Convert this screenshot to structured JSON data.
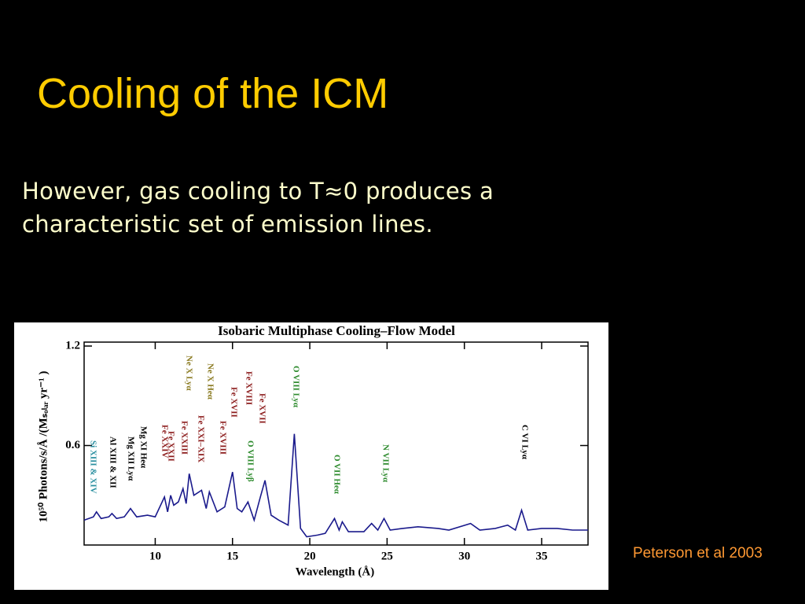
{
  "slide": {
    "title": "Cooling of the ICM",
    "body": [
      "However, gas cooling to T≈0 produces a",
      "characteristic set of emission lines."
    ],
    "citation": "Peterson et al 2003"
  },
  "chart_data": {
    "type": "line",
    "title": "Isobaric Multiphase Cooling–Flow Model",
    "x_label": "Wavelength (Å)",
    "y_label": "10⁵⁰ Photons/s/Å /(Mₛₒₗₐᵣ yr⁻¹ )",
    "x": [
      5.4,
      6.0,
      6.2,
      6.5,
      7.0,
      7.2,
      7.5,
      8.0,
      8.4,
      8.8,
      9.5,
      10.0,
      10.6,
      10.8,
      11.0,
      11.2,
      11.5,
      11.8,
      12.0,
      12.2,
      12.5,
      13.0,
      13.3,
      13.5,
      14.0,
      14.5,
      15.0,
      15.3,
      15.6,
      16.0,
      16.4,
      16.8,
      17.1,
      17.5,
      18.0,
      18.6,
      19.0,
      19.4,
      19.8,
      20.5,
      21.0,
      21.6,
      21.9,
      22.1,
      22.5,
      23.5,
      24.0,
      24.4,
      24.8,
      25.2,
      26,
      27,
      28.3,
      29,
      30.4,
      31,
      32,
      32.8,
      33.3,
      33.7,
      34.1,
      35,
      36,
      37,
      38
    ],
    "values": [
      0.15,
      0.17,
      0.2,
      0.16,
      0.17,
      0.19,
      0.16,
      0.17,
      0.22,
      0.17,
      0.18,
      0.17,
      0.29,
      0.2,
      0.3,
      0.24,
      0.26,
      0.34,
      0.25,
      0.43,
      0.3,
      0.33,
      0.22,
      0.32,
      0.2,
      0.23,
      0.44,
      0.22,
      0.2,
      0.26,
      0.15,
      0.29,
      0.39,
      0.18,
      0.15,
      0.12,
      0.67,
      0.1,
      0.05,
      0.06,
      0.07,
      0.16,
      0.09,
      0.14,
      0.08,
      0.08,
      0.13,
      0.09,
      0.16,
      0.09,
      0.1,
      0.11,
      0.1,
      0.09,
      0.13,
      0.09,
      0.1,
      0.12,
      0.09,
      0.21,
      0.09,
      0.1,
      0.1,
      0.09,
      0.09
    ],
    "color": "#1a1a8c",
    "xlim": [
      5.4,
      38
    ],
    "xticks": [
      10,
      15,
      20,
      25,
      30,
      35
    ],
    "ylim": [
      0,
      1.2
    ],
    "yticks": [
      0.6,
      1.2
    ],
    "annotations": [
      {
        "text": "Si XIII & XIV",
        "color": "#2a8fa0"
      },
      {
        "text": "Al XIII & XII",
        "color": "#000000"
      },
      {
        "text": "Mg XII Lyα",
        "color": "#000000"
      },
      {
        "text": "Mg XI Heα",
        "color": "#000000"
      },
      {
        "text": "Fe XXIV",
        "color": "#8b1a1a"
      },
      {
        "text": "Fe XXII",
        "color": "#8b1a1a"
      },
      {
        "text": "Fe XXIII",
        "color": "#8b1a1a"
      },
      {
        "text": "Ne X Lyα",
        "color": "#8a7a20"
      },
      {
        "text": "Ne X Heα",
        "color": "#8a7a20"
      },
      {
        "text": "Fe XXI–XIX",
        "color": "#8b1a1a"
      },
      {
        "text": "Fe XVIII",
        "color": "#8b1a1a"
      },
      {
        "text": "Fe XVII",
        "color": "#8b1a1a"
      },
      {
        "text": "Fe XVIII",
        "color": "#8b1a1a"
      },
      {
        "text": "Fe XVII",
        "color": "#8b1a1a"
      },
      {
        "text": "O VIII Lyα",
        "color": "#2e8b2e"
      },
      {
        "text": "O VIII Lyβ",
        "color": "#2e8b2e"
      },
      {
        "text": "O VII Heα",
        "color": "#2e8b2e"
      },
      {
        "text": "N VII Lyα",
        "color": "#2e8b2e"
      },
      {
        "text": "C VI Lyα",
        "color": "#000000"
      }
    ]
  }
}
